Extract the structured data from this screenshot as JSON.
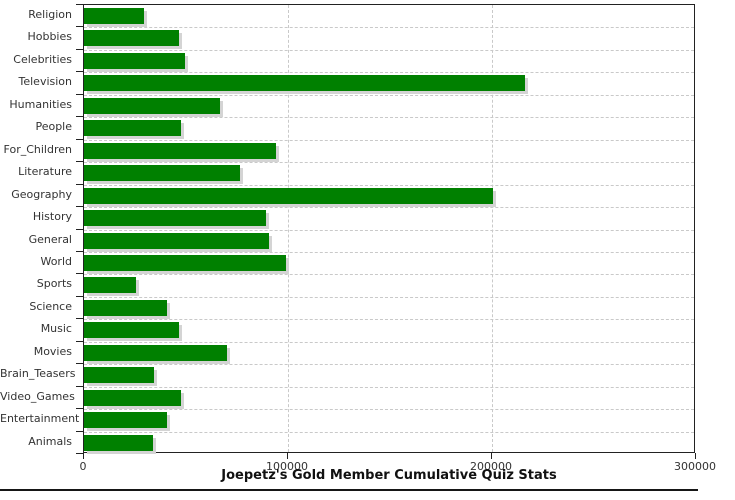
{
  "chart_data": {
    "type": "bar",
    "orientation": "horizontal",
    "title": "Joepetz's Gold Member Cumulative Quiz Stats",
    "categories": [
      "Religion",
      "Hobbies",
      "Celebrities",
      "Television",
      "Humanities",
      "People",
      "For_Children",
      "Literature",
      "Geography",
      "History",
      "General",
      "World",
      "Sports",
      "Science",
      "Music",
      "Movies",
      "Brain_Teasers",
      "Video_Games",
      "Entertainment",
      "Animals"
    ],
    "values": [
      29500,
      46500,
      49500,
      216000,
      66500,
      47500,
      94000,
      76500,
      200500,
      89000,
      90500,
      99000,
      25500,
      40500,
      46500,
      70000,
      34500,
      47500,
      40500,
      34000
    ],
    "xlabel": "",
    "ylabel": "",
    "xlim": [
      0,
      300000
    ],
    "xticks": [
      0,
      100000,
      200000,
      300000
    ],
    "xtick_labels": [
      "0",
      "100000",
      "200000",
      "300000"
    ],
    "grid": "dashed",
    "legend": "none",
    "colors": {
      "bar": "#008000",
      "bar_shadow": "#d4d4d4",
      "gridline": "#c9c9c9",
      "axis": "#222222",
      "text": "#333333",
      "title": "#111111",
      "background": "#ffffff"
    }
  }
}
